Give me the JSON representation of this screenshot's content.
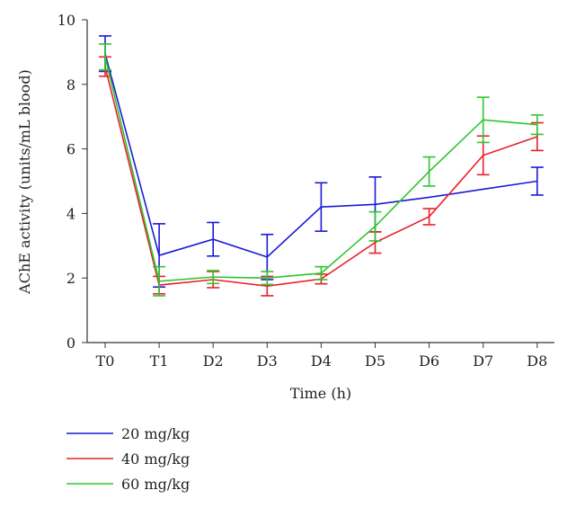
{
  "chart_data": {
    "type": "line",
    "title": "",
    "xlabel": "Time (h)",
    "ylabel": "AChE activity (units/mL blood)",
    "categories": [
      "T0",
      "T1",
      "D2",
      "D3",
      "D4",
      "D5",
      "D6",
      "D7",
      "D8"
    ],
    "ylim": [
      0,
      10
    ],
    "yticks": [
      0,
      2,
      4,
      6,
      8,
      10
    ],
    "grid": false,
    "legend_position": "bottom-left",
    "series": [
      {
        "name": "20 mg/kg",
        "color": "#1a1ad6",
        "values": [
          8.95,
          2.7,
          3.2,
          2.65,
          4.2,
          4.28,
          4.5,
          4.75,
          5.0
        ],
        "errors": [
          0.55,
          0.98,
          0.52,
          0.7,
          0.75,
          0.85,
          null,
          null,
          0.43
        ]
      },
      {
        "name": "40 mg/kg",
        "color": "#e8202a",
        "values": [
          8.55,
          1.78,
          1.95,
          1.75,
          1.97,
          3.1,
          3.9,
          5.8,
          6.38
        ],
        "errors": [
          0.3,
          0.27,
          0.25,
          0.3,
          0.15,
          0.33,
          0.25,
          0.6,
          0.43
        ]
      },
      {
        "name": "60 mg/kg",
        "color": "#2ec52e",
        "values": [
          8.85,
          1.9,
          2.03,
          2.0,
          2.15,
          3.6,
          5.3,
          6.9,
          6.75
        ],
        "errors": [
          0.4,
          0.45,
          0.2,
          0.2,
          0.2,
          0.45,
          0.45,
          0.7,
          0.3
        ]
      }
    ]
  }
}
